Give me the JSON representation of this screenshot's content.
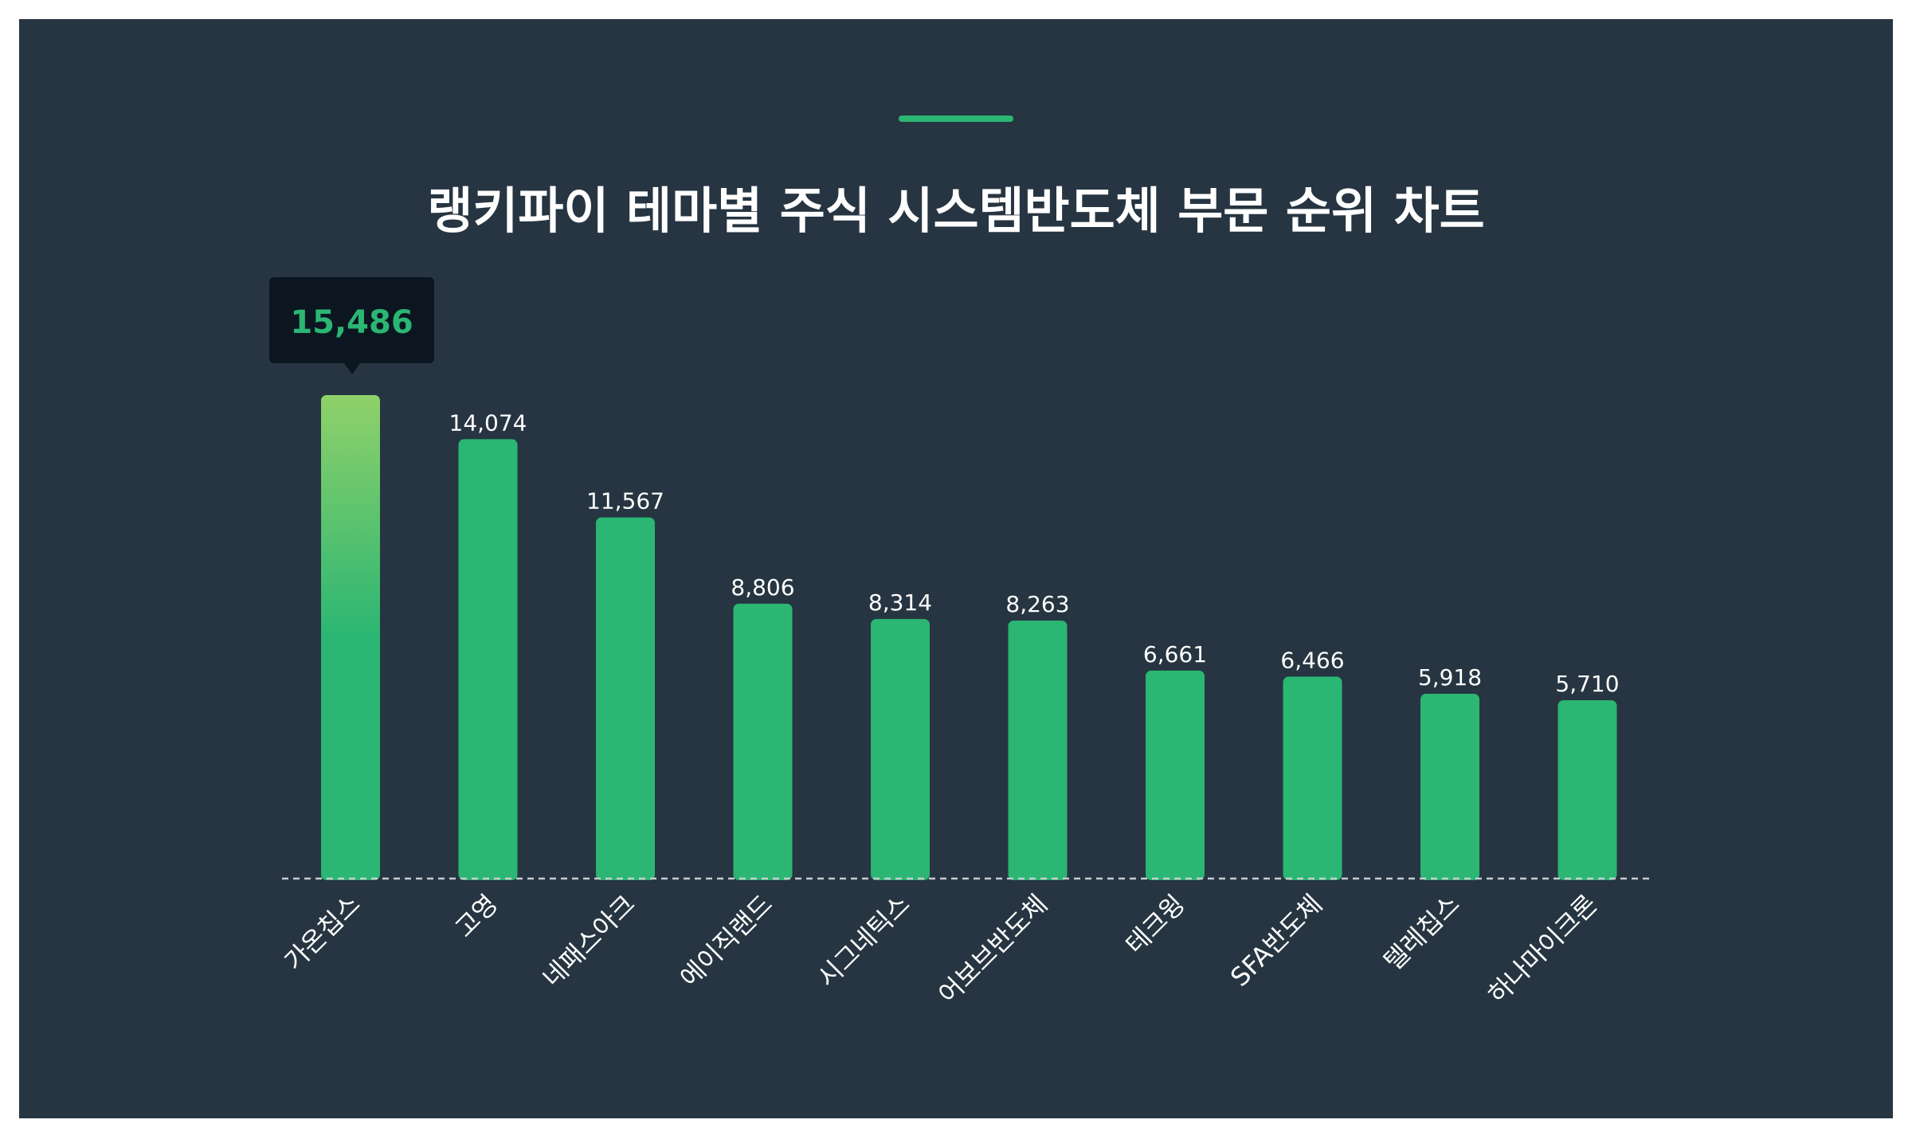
{
  "chart_data": {
    "type": "bar",
    "title": "랭키파이 테마별 주식 시스템반도체 부문 순위 차트",
    "categories": [
      "가온칩스",
      "고영",
      "네패스아크",
      "에이직랜드",
      "시그네틱스",
      "어보브반도체",
      "테크윙",
      "SFA반도체",
      "텔레칩스",
      "하나마이크론"
    ],
    "values": [
      15486,
      14074,
      11567,
      8806,
      8314,
      8263,
      6661,
      6466,
      5918,
      5710
    ],
    "value_labels": [
      "15,486",
      "14,074",
      "11,567",
      "8,806",
      "8,314",
      "8,263",
      "6,661",
      "6,466",
      "5,918",
      "5,710"
    ],
    "ylim": [
      0,
      15486
    ],
    "grid": false,
    "highlight": {
      "index": 0,
      "label": "15,486"
    }
  },
  "colors": {
    "background": "#263541",
    "bar": "#2bb673",
    "highlight_top": "#8fd16a",
    "accent": "#2bb673",
    "tooltip_bg": "#0c1620",
    "baseline": "#c8cdd2"
  }
}
